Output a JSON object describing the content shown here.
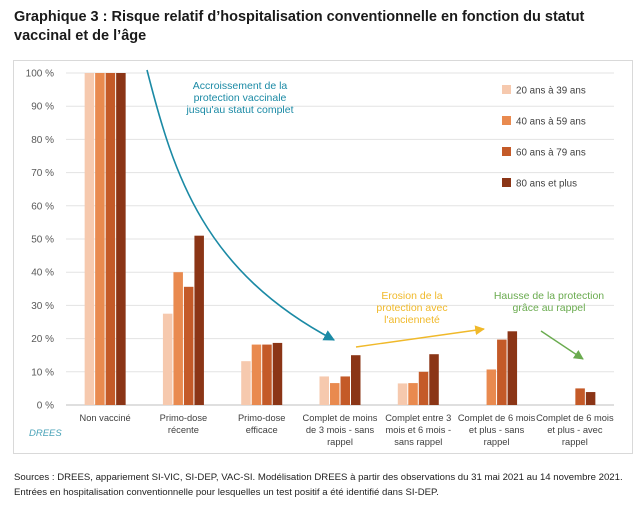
{
  "title": "Graphique 3 : Risque relatif d’hospitalisation conventionnelle en fonction du statut vaccinal et de l’âge",
  "sources": [
    "Sources : DREES, appariement SI-VIC, SI-DEP, VAC-SI. Modélisation DREES à partir des observations du 31 mai 2021 au 14 novembre 2021.",
    "Entrées en hospitalisation conventionnelle pour lesquelles un test positif a été identifié dans SI-DEP."
  ],
  "logo_text": "DREES",
  "chart_data": {
    "type": "bar",
    "categories": [
      [
        "Non vacciné"
      ],
      [
        "Primo-dose",
        "récente"
      ],
      [
        "Primo-dose",
        "efficace"
      ],
      [
        "Complet de moins",
        "de 3 mois - sans",
        "rappel"
      ],
      [
        "Complet entre 3",
        "mois et 6 mois -",
        "sans rappel"
      ],
      [
        "Complet de 6 mois",
        "et plus - sans",
        "rappel"
      ],
      [
        "Complet de 6 mois",
        "et plus - avec",
        "rappel"
      ]
    ],
    "series": [
      {
        "name": "20 ans à 39 ans",
        "color": "#f6c9ae",
        "values": [
          100,
          27.5,
          13.2,
          8.6,
          6.5,
          null,
          null
        ]
      },
      {
        "name": "40 ans à 59 ans",
        "color": "#e98a4f",
        "values": [
          100,
          40.0,
          18.2,
          6.6,
          6.6,
          10.7,
          null
        ]
      },
      {
        "name": "60 ans à 79 ans",
        "color": "#c45a28",
        "values": [
          100,
          35.6,
          18.2,
          8.6,
          10.0,
          19.7,
          5.0
        ]
      },
      {
        "name": "80 ans et plus",
        "color": "#8b3516",
        "values": [
          100,
          51.0,
          18.7,
          15.0,
          15.3,
          22.2,
          3.9
        ]
      }
    ],
    "y_ticks": [
      "0 %",
      "10 %",
      "20 %",
      "30 %",
      "40 %",
      "50 %",
      "60 %",
      "70 %",
      "80 %",
      "90 %",
      "100 %"
    ],
    "ylim": [
      0,
      100
    ],
    "legend_position": "top-right",
    "annotations": [
      {
        "lines": [
          "Accroissement de la",
          "protection vaccinale",
          "jusqu'au statut complet"
        ],
        "color": "#1b8aa5"
      },
      {
        "lines": [
          "Erosion de la",
          "protection avec",
          "l'ancienneté"
        ],
        "color": "#f0b92a"
      },
      {
        "lines": [
          "Hausse de la protection",
          "grâce au rappel"
        ],
        "color": "#6aab4f"
      }
    ]
  }
}
